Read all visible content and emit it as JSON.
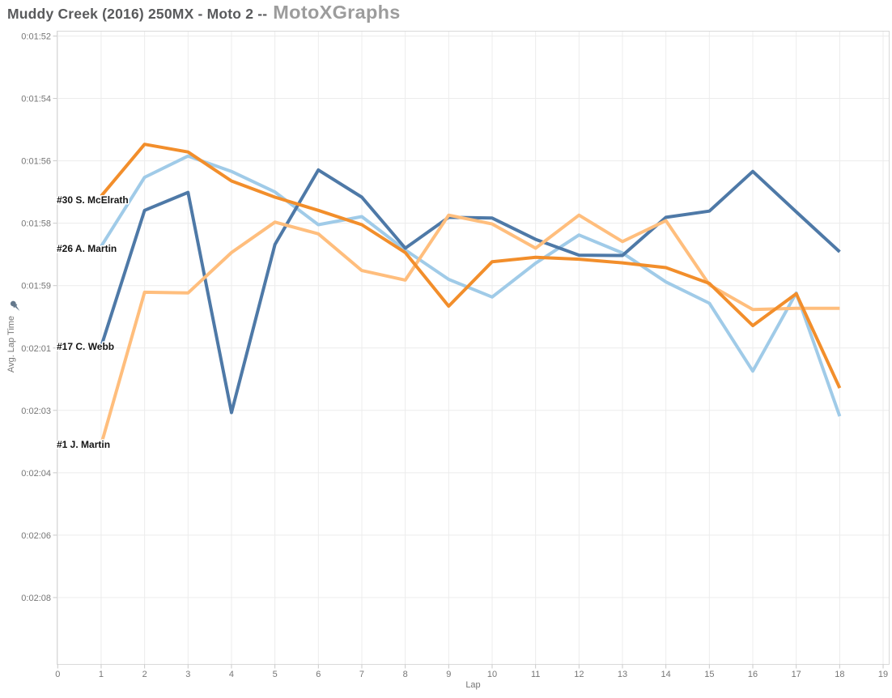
{
  "header": {
    "title_main": "Muddy Creek (2016) 250MX - Moto 2 --",
    "title_brand": "MotoXGraphs"
  },
  "colors": {
    "title_main": "#595a5c",
    "title_brand": "#9c9c9c",
    "gridline": "#ececec",
    "plot_border": "#d9d9d9",
    "tick_mark": "#c9c9c9",
    "tick_label": "#767676",
    "pin_icon": "#64788c"
  },
  "chart_data": {
    "type": "line",
    "title": "Muddy Creek (2016) 250MX - Moto 2 -- MotoXGraphs",
    "xlabel": "Lap",
    "ylabel": "Avg. Lap Time",
    "x_tick_labels": [
      "0",
      "1",
      "2",
      "3",
      "4",
      "5",
      "6",
      "7",
      "8",
      "9",
      "10",
      "11",
      "12",
      "13",
      "14",
      "15",
      "16",
      "17",
      "18",
      "19"
    ],
    "y_tick_labels": [
      "0:01:52",
      "0:01:54",
      "0:01:56",
      "0:01:58",
      "0:01:59",
      "0:02:01",
      "0:02:03",
      "0:02:04",
      "0:02:06",
      "0:02:08"
    ],
    "y_axis": {
      "inverted_note": "faster (smaller) lap times at top; ticks evenly spaced ~1.7s apart, labels rounded to whole seconds",
      "tick_seconds": [
        112.45,
        114.15,
        115.85,
        117.55,
        119.25,
        120.95,
        122.65,
        124.35,
        126.05,
        127.75
      ],
      "pinned": true
    },
    "x": [
      1,
      2,
      3,
      4,
      5,
      6,
      7,
      8,
      9,
      10,
      11,
      12,
      13,
      14,
      15,
      16,
      17,
      18
    ],
    "xlim": [
      0,
      19
    ],
    "grid": true,
    "legend_position": "inline-left-labels",
    "series": [
      {
        "name": "#30 S. McElrath",
        "color": "#f28e2b",
        "seconds": [
          116.81,
          115.4,
          115.61,
          116.4,
          116.84,
          117.2,
          117.59,
          118.35,
          119.81,
          118.6,
          118.48,
          118.53,
          118.63,
          118.76,
          119.19,
          120.34,
          119.47,
          122.04
        ],
        "display": [
          "1:56.8",
          "1:55.4",
          "1:55.6",
          "1:56.4",
          "1:56.8",
          "1:57.2",
          "1:57.6",
          "1:58.4",
          "1:59.8",
          "1:58.6",
          "1:58.5",
          "1:58.5",
          "1:58.6",
          "1:58.8",
          "1:59.2",
          "2:00.3",
          "1:59.5",
          "2:02.0"
        ]
      },
      {
        "name": "#26 A. Martin",
        "color": "#a0cbe8",
        "seconds": [
          118.18,
          116.3,
          115.72,
          116.14,
          116.7,
          117.59,
          117.37,
          118.28,
          119.08,
          119.56,
          118.64,
          117.87,
          118.36,
          119.15,
          119.73,
          121.58,
          119.45,
          122.81
        ],
        "display": [
          "1:58.2",
          "1:56.3",
          "1:55.7",
          "1:56.1",
          "1:56.7",
          "1:57.6",
          "1:57.4",
          "1:58.3",
          "1:59.1",
          "1:59.6",
          "1:58.6",
          "1:57.9",
          "1:58.4",
          "1:59.2",
          "1:59.7",
          "2:01.6",
          "1:59.4",
          "2:02.8"
        ]
      },
      {
        "name": "#17 C. Webb",
        "color": "#4e79a7",
        "seconds": [
          120.91,
          117.2,
          116.71,
          122.71,
          118.13,
          116.1,
          116.84,
          118.23,
          117.39,
          117.41,
          117.99,
          118.42,
          118.43,
          117.39,
          117.22,
          116.14,
          117.24,
          118.33
        ],
        "display": [
          "2:00.9",
          "1:57.2",
          "1:56.7",
          "2:02.7",
          "1:58.1",
          "1:56.1",
          "1:56.8",
          "1:58.2",
          "1:57.4",
          "1:57.4",
          "1:58.0",
          "1:58.4",
          "1:58.4",
          "1:57.4",
          "1:57.2",
          "1:56.1",
          "1:57.2",
          "1:58.3"
        ]
      },
      {
        "name": "#1 J. Martin",
        "color": "#ffbe7d",
        "seconds": [
          123.58,
          119.43,
          119.45,
          118.35,
          117.52,
          117.84,
          118.84,
          119.1,
          117.33,
          117.57,
          118.23,
          117.33,
          118.05,
          117.48,
          119.23,
          119.9,
          119.87,
          119.87
        ],
        "display": [
          "2:03.6",
          "1:59.4",
          "1:59.4",
          "1:58.4",
          "1:57.5",
          "1:57.8",
          "1:58.8",
          "1:59.1",
          "1:57.3",
          "1:57.6",
          "1:58.2",
          "1:57.3",
          "1:58.0",
          "1:57.5",
          "1:59.2",
          "1:59.9",
          "1:59.9",
          "1:59.9"
        ]
      }
    ]
  }
}
